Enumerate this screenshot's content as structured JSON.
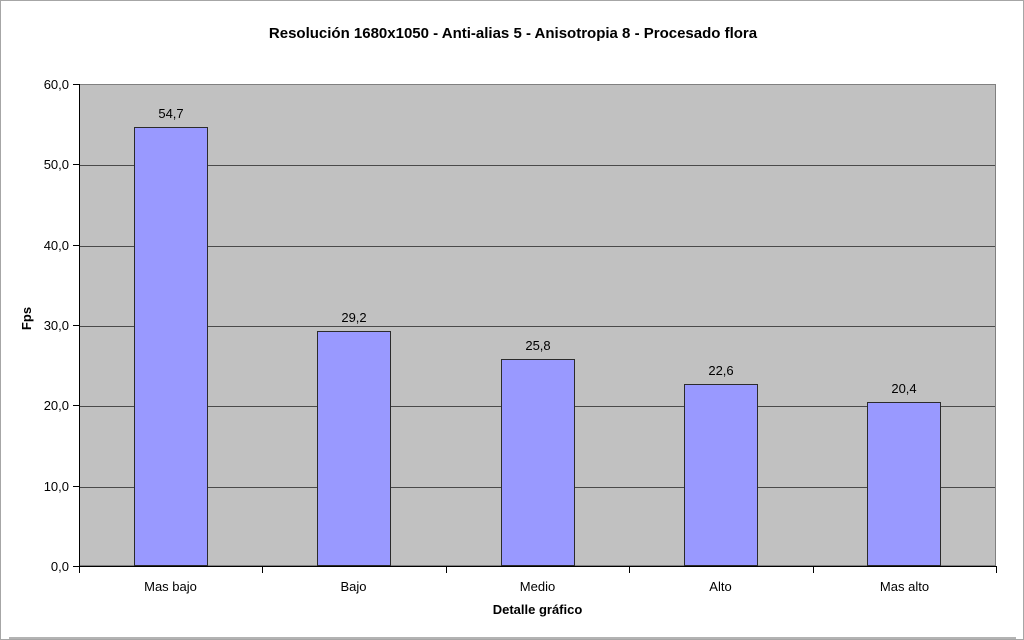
{
  "chart_data": {
    "type": "bar",
    "title": "Resolución 1680x1050 - Anti-alias 5 - Anisotropia 8 - Procesado flora",
    "categories": [
      "Mas bajo",
      "Bajo",
      "Medio",
      "Alto",
      "Mas alto"
    ],
    "values": [
      54.7,
      29.2,
      25.8,
      22.6,
      20.4
    ],
    "value_labels": [
      "54,7",
      "29,2",
      "25,8",
      "22,6",
      "20,4"
    ],
    "xlabel": "Detalle gráfico",
    "ylabel": "Fps",
    "ylim": [
      0,
      60
    ],
    "ytick_step": 10,
    "ytick_labels": [
      "0,0",
      "10,0",
      "20,0",
      "30,0",
      "40,0",
      "50,0",
      "60,0"
    ],
    "grid": true,
    "legend": "none",
    "colors": {
      "bar_fill": "#9999ff",
      "bar_border": "#2b2b2b",
      "plot_background": "#c1c1c1",
      "gridline": "#4a4a4a",
      "plot_border": "#808080",
      "page_background": "#ffffff",
      "text": "#000000"
    }
  }
}
